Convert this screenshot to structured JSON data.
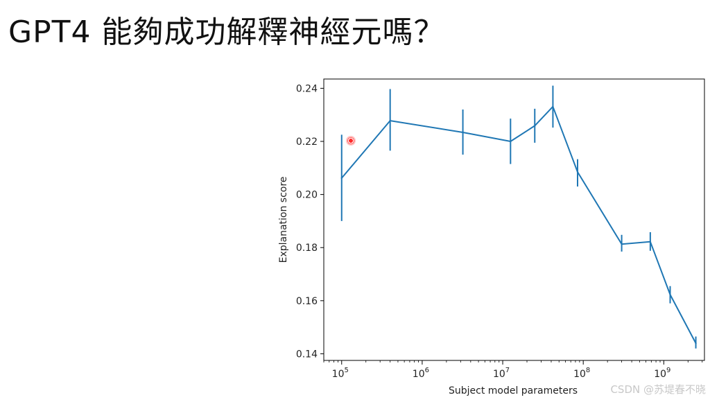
{
  "slide": {
    "title": "GPT4 能夠成功解釋神經元嗎？",
    "watermark": "CSDN @苏堤春不晓"
  },
  "chart_data": {
    "type": "line",
    "x_scale": "log",
    "xlabel": "Subject model parameters",
    "ylabel": "Explanation score",
    "xlim": [
      60000,
      3200000000
    ],
    "ylim": [
      0.1375,
      0.2435
    ],
    "x_ticks": [
      {
        "exp": 5,
        "base": "10",
        "sup": "5"
      },
      {
        "exp": 6,
        "base": "10",
        "sup": "6"
      },
      {
        "exp": 7,
        "base": "10",
        "sup": "7"
      },
      {
        "exp": 8,
        "base": "10",
        "sup": "8"
      },
      {
        "exp": 9,
        "base": "10",
        "sup": "9"
      }
    ],
    "y_ticks": [
      "0.14",
      "0.16",
      "0.18",
      "0.20",
      "0.22",
      "0.24"
    ],
    "series": [
      {
        "color": "#1f77b4",
        "points": [
          {
            "x": 100000,
            "y": 0.2062,
            "err_low": 0.19,
            "err_high": 0.2225
          },
          {
            "x": 400000,
            "y": 0.2278,
            "err_low": 0.2165,
            "err_high": 0.2397
          },
          {
            "x": 3200000,
            "y": 0.2234,
            "err_low": 0.215,
            "err_high": 0.232
          },
          {
            "x": 12500000,
            "y": 0.22,
            "err_low": 0.2115,
            "err_high": 0.2286
          },
          {
            "x": 25000000,
            "y": 0.2259,
            "err_low": 0.2195,
            "err_high": 0.2323
          },
          {
            "x": 42000000,
            "y": 0.2331,
            "err_low": 0.2252,
            "err_high": 0.241
          },
          {
            "x": 85000000,
            "y": 0.2085,
            "err_low": 0.203,
            "err_high": 0.2133
          },
          {
            "x": 300000000,
            "y": 0.1813,
            "err_low": 0.1785,
            "err_high": 0.1848
          },
          {
            "x": 680000000,
            "y": 0.1822,
            "err_low": 0.1788,
            "err_high": 0.1858
          },
          {
            "x": 1200000000,
            "y": 0.1623,
            "err_low": 0.159,
            "err_high": 0.1655
          },
          {
            "x": 2500000000,
            "y": 0.144,
            "err_low": 0.142,
            "err_high": 0.1465
          }
        ]
      }
    ],
    "grid": false,
    "legend": "none"
  }
}
